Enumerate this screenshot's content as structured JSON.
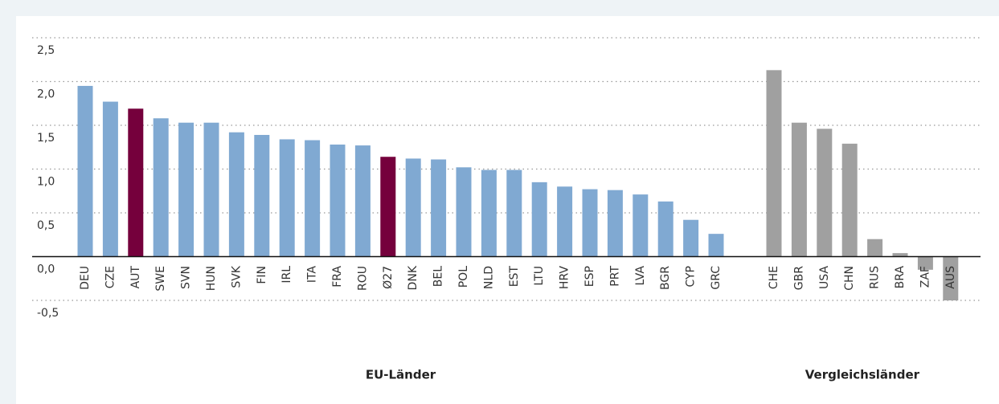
{
  "chart_data": {
    "type": "bar",
    "ylim": [
      -0.5,
      2.5
    ],
    "yticks": [
      {
        "value": -0.5,
        "label": "-0,5"
      },
      {
        "value": 0,
        "label": "0,0"
      },
      {
        "value": 0.5,
        "label": "0,5"
      },
      {
        "value": 1,
        "label": "1,0"
      },
      {
        "value": 1.5,
        "label": "1,5"
      },
      {
        "value": 2,
        "label": "2,0"
      },
      {
        "value": 2.5,
        "label": "2,5"
      }
    ],
    "grid": true,
    "groups": [
      {
        "name": "EU-Länder",
        "categories": [
          "DEU",
          "CZE",
          "AUT",
          "SWE",
          "SVN",
          "HUN",
          "SVK",
          "FIN",
          "IRL",
          "ITA",
          "FRA",
          "ROU",
          "Ø27",
          "DNK",
          "BEL",
          "POL",
          "NLD",
          "EST",
          "LTU",
          "HRV",
          "ESP",
          "PRT",
          "LVA",
          "BGR",
          "CYP",
          "GRC"
        ],
        "values": [
          1.95,
          1.77,
          1.69,
          1.58,
          1.53,
          1.53,
          1.42,
          1.39,
          1.34,
          1.33,
          1.28,
          1.27,
          1.14,
          1.12,
          1.11,
          1.02,
          0.99,
          0.99,
          0.85,
          0.8,
          0.77,
          0.76,
          0.71,
          0.63,
          0.42,
          0.26
        ],
        "colors": [
          "#80a9d2",
          "#80a9d2",
          "#75003c",
          "#80a9d2",
          "#80a9d2",
          "#80a9d2",
          "#80a9d2",
          "#80a9d2",
          "#80a9d2",
          "#80a9d2",
          "#80a9d2",
          "#80a9d2",
          "#75003c",
          "#80a9d2",
          "#80a9d2",
          "#80a9d2",
          "#80a9d2",
          "#80a9d2",
          "#80a9d2",
          "#80a9d2",
          "#80a9d2",
          "#80a9d2",
          "#80a9d2",
          "#80a9d2",
          "#80a9d2",
          "#80a9d2"
        ]
      },
      {
        "name": "Vergleichsländer",
        "categories": [
          "CHE",
          "GBR",
          "USA",
          "CHN",
          "RUS",
          "BRA",
          "ZAF",
          "AUS"
        ],
        "values": [
          2.13,
          1.53,
          1.46,
          1.29,
          0.2,
          0.04,
          -0.15,
          -0.5
        ],
        "colors": [
          "#a0a0a0",
          "#a0a0a0",
          "#a0a0a0",
          "#a0a0a0",
          "#a0a0a0",
          "#a0a0a0",
          "#a0a0a0",
          "#a0a0a0"
        ]
      }
    ]
  }
}
